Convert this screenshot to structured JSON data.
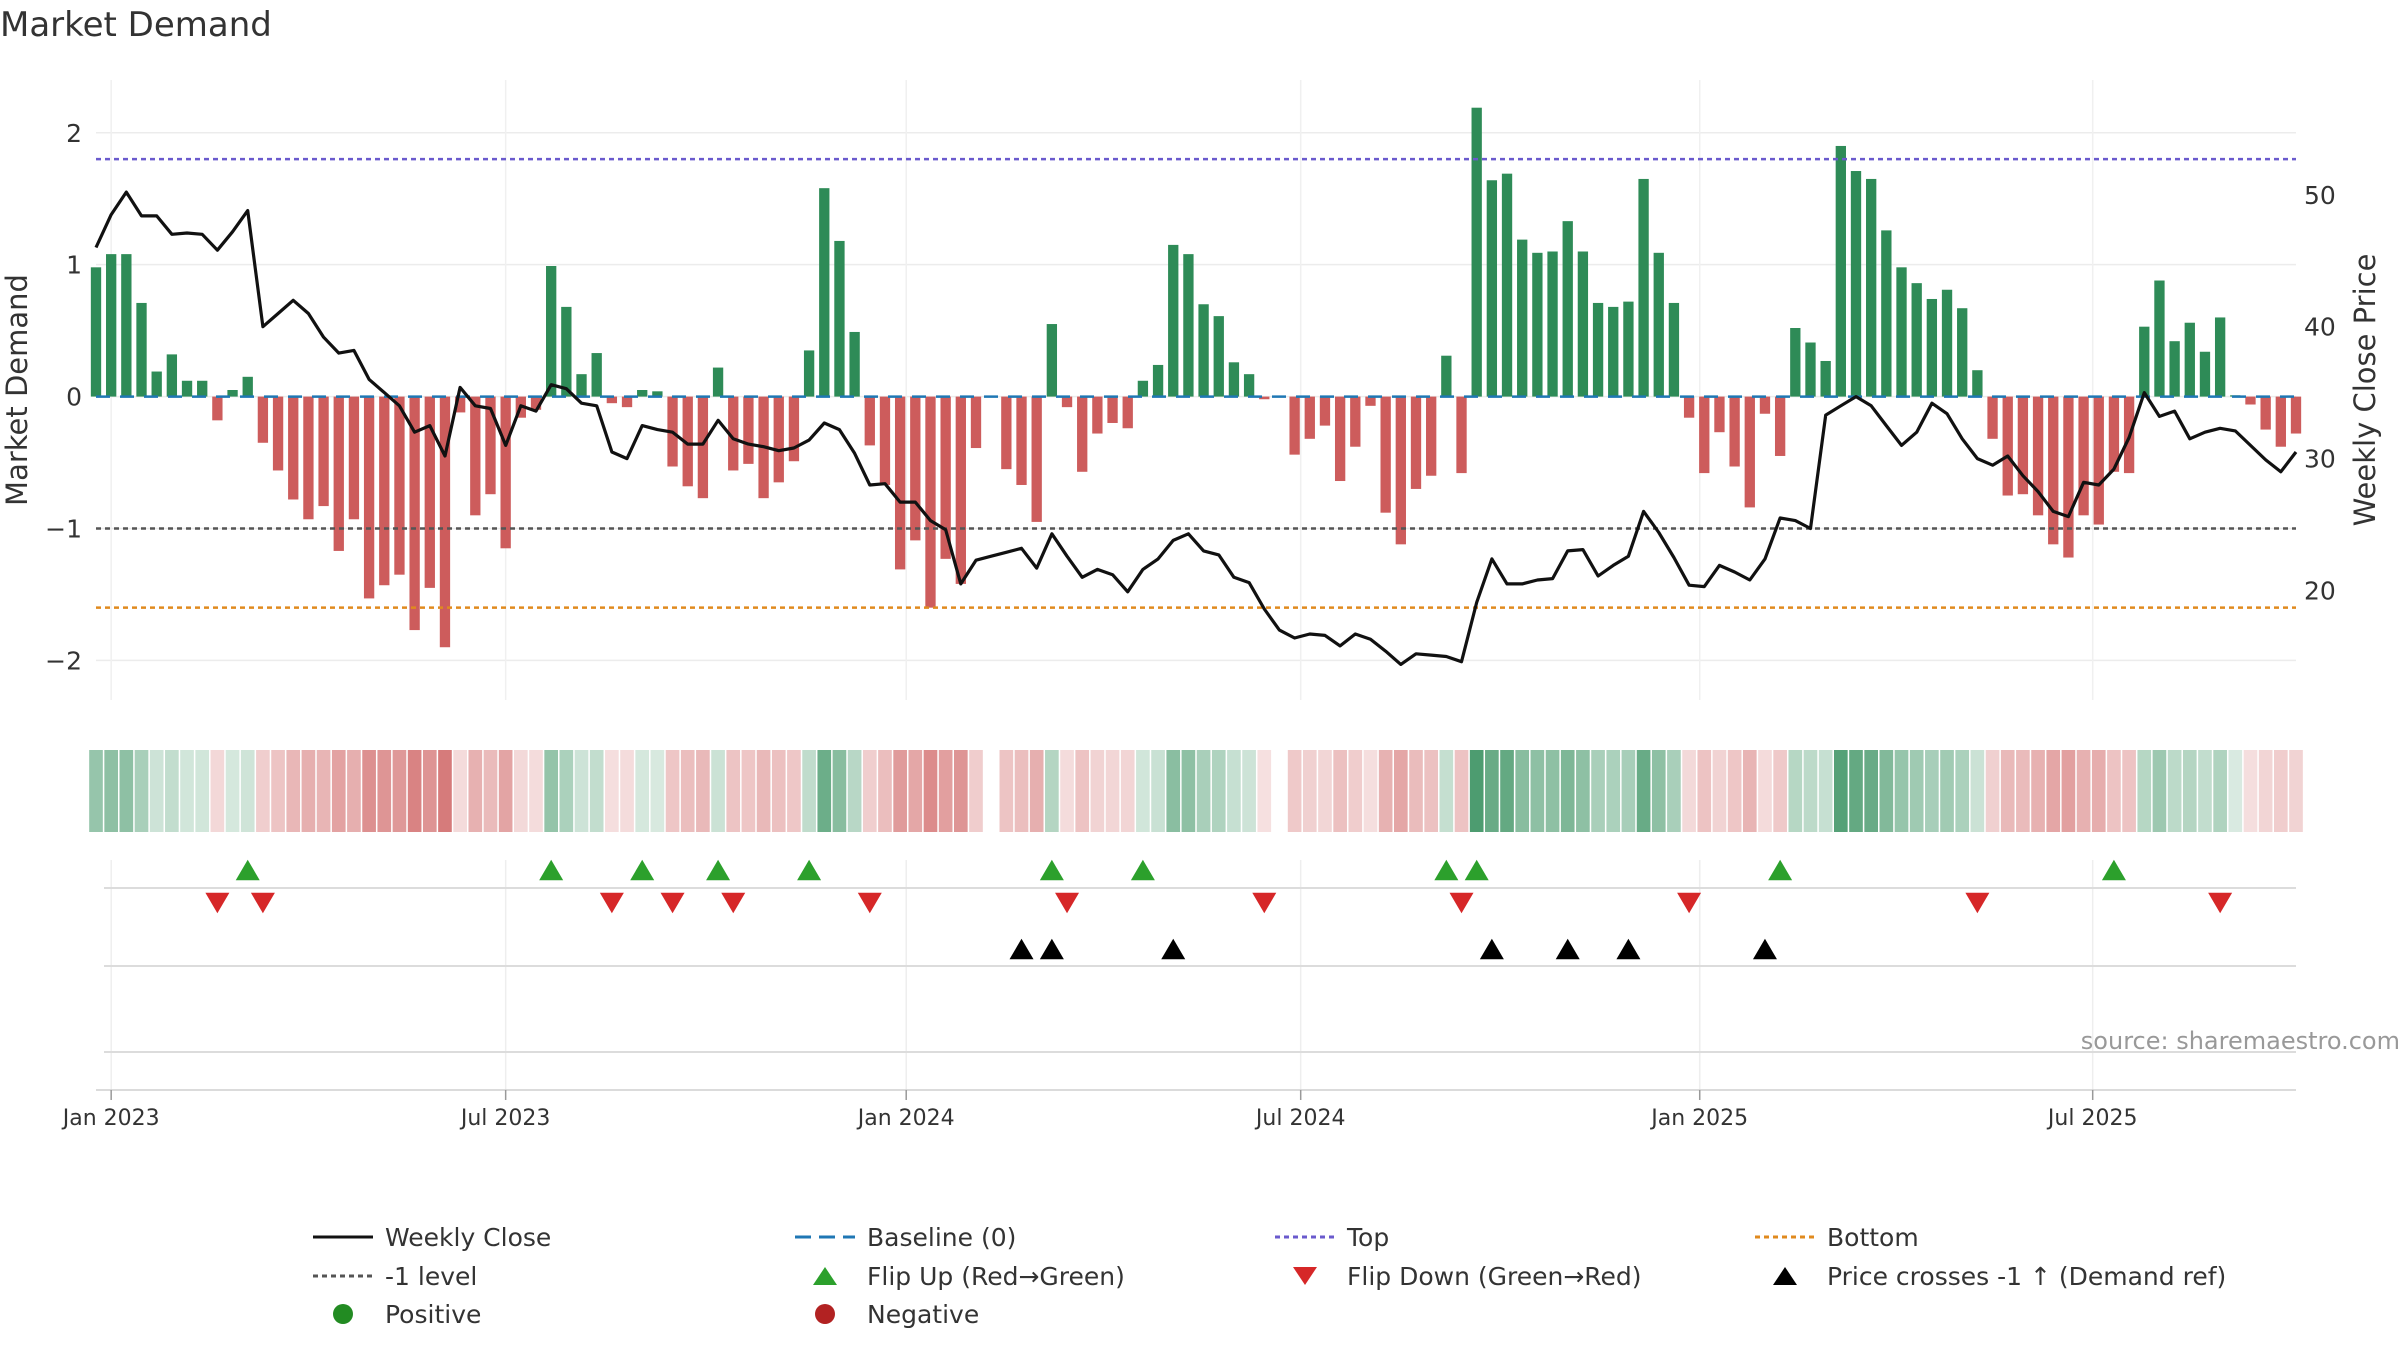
{
  "chart_data": {
    "type": "bar",
    "title": "Market Demand",
    "ylabel_left": "Market Demand",
    "ylabel_right": "Weekly Close Price",
    "source": "source: sharemaestro.com",
    "ylim_left": [
      -2.3,
      2.4
    ],
    "ylim_right": [
      11.7,
      58.7
    ],
    "yticks_left": [
      2,
      1,
      0,
      -1,
      -2
    ],
    "yticks_right": [
      50,
      40,
      30,
      20
    ],
    "ytick_labels_left": [
      "2",
      "1",
      "0",
      "−1",
      "−2"
    ],
    "ytick_labels_right": [
      "50",
      "40",
      "30",
      "20"
    ],
    "xticks": [
      {
        "label": "Jan 2023",
        "week": 1
      },
      {
        "label": "Jul 2023",
        "week": 27
      },
      {
        "label": "Jan 2024",
        "week": 53.4
      },
      {
        "label": "Jul 2024",
        "week": 79.4
      },
      {
        "label": "Jan 2025",
        "week": 105.7
      },
      {
        "label": "Jul 2025",
        "week": 131.6
      }
    ],
    "levels": {
      "top": 1.8,
      "bottom": -1.6,
      "minus_one": -1.0,
      "baseline": 0
    },
    "colors": {
      "positive": "#2e8b57",
      "negative": "#cd5c5c",
      "close": "#111111",
      "baseline": "#1f77b4",
      "top": "#6a5acd",
      "bottom": "#e08a1e",
      "minus_one": "#555555",
      "flip_up": "#2ca02c",
      "flip_down": "#d62728",
      "cross": "#000000",
      "positive_dot": "#228b22",
      "negative_dot": "#b22222"
    },
    "x_range_weeks": [
      0,
      145
    ],
    "demand": [
      0.98,
      1.08,
      1.08,
      0.71,
      0.19,
      0.32,
      0.12,
      0.12,
      -0.18,
      0.05,
      0.15,
      -0.35,
      -0.56,
      -0.78,
      -0.93,
      -0.83,
      -1.17,
      -0.93,
      -1.53,
      -1.43,
      -1.35,
      -1.77,
      -1.45,
      -1.9,
      -0.12,
      -0.9,
      -0.74,
      -1.15,
      -0.16,
      -0.1,
      0.99,
      0.68,
      0.17,
      0.33,
      -0.05,
      -0.08,
      0.05,
      0.04,
      -0.53,
      -0.68,
      -0.77,
      0.22,
      -0.56,
      -0.51,
      -0.77,
      -0.65,
      -0.49,
      0.35,
      1.58,
      1.18,
      0.49,
      -0.37,
      -0.67,
      -1.31,
      -1.09,
      -1.6,
      -1.23,
      -1.42,
      -0.39,
      null,
      -0.55,
      -0.67,
      -0.95,
      0.55,
      -0.08,
      -0.57,
      -0.28,
      -0.2,
      -0.24,
      0.12,
      0.24,
      1.15,
      1.08,
      0.7,
      0.61,
      0.26,
      0.17,
      -0.02,
      null,
      -0.44,
      -0.32,
      -0.22,
      -0.64,
      -0.38,
      -0.07,
      -0.88,
      -1.12,
      -0.7,
      -0.6,
      0.31,
      -0.58,
      2.19,
      1.64,
      1.69,
      1.19,
      1.09,
      1.1,
      1.33,
      1.1,
      0.71,
      0.68,
      0.72,
      1.65,
      1.09,
      0.71,
      -0.16,
      -0.58,
      -0.27,
      -0.53,
      -0.84,
      -0.13,
      -0.45,
      0.52,
      0.41,
      0.27,
      1.9,
      1.71,
      1.65,
      1.26,
      0.98,
      0.86,
      0.74,
      0.81,
      0.67,
      0.2,
      -0.32,
      -0.75,
      -0.74,
      -0.9,
      -1.12,
      -1.22,
      -0.9,
      -0.97,
      -0.57,
      -0.58,
      0.53,
      0.88,
      0.42,
      0.56,
      0.34,
      0.6,
      0.01,
      -0.06,
      -0.25,
      -0.38,
      -0.28
    ],
    "close": [
      46.0,
      48.5,
      50.2,
      48.4,
      48.4,
      47.0,
      47.1,
      47.0,
      45.8,
      47.2,
      48.8,
      40.0,
      41.0,
      42.0,
      41.0,
      39.2,
      38.0,
      38.2,
      36.0,
      35.0,
      34.0,
      32.0,
      32.5,
      30.2,
      35.4,
      34.0,
      33.8,
      31.0,
      34.0,
      33.6,
      35.6,
      35.3,
      34.2,
      34.0,
      30.5,
      30.0,
      32.5,
      32.2,
      32.0,
      31.1,
      31.1,
      32.9,
      31.5,
      31.1,
      30.9,
      30.6,
      30.8,
      31.4,
      32.7,
      32.2,
      30.4,
      28.0,
      28.1,
      26.7,
      26.7,
      25.3,
      24.6,
      20.5,
      22.3,
      22.6,
      22.9,
      23.2,
      21.7,
      24.3,
      22.6,
      21.0,
      21.6,
      21.2,
      19.9,
      21.6,
      22.4,
      23.8,
      24.3,
      23.0,
      22.7,
      21.0,
      20.6,
      18.6,
      17.0,
      16.4,
      16.7,
      16.6,
      15.8,
      16.7,
      16.3,
      15.4,
      14.4,
      15.2,
      15.1,
      15.0,
      14.6,
      19.1,
      22.4,
      20.5,
      20.5,
      20.8,
      20.9,
      23.0,
      23.1,
      21.1,
      21.9,
      22.6,
      26.0,
      24.4,
      22.5,
      20.4,
      20.3,
      21.9,
      21.4,
      20.8,
      22.4,
      25.5,
      25.3,
      24.7,
      33.3,
      34.0,
      34.7,
      34.0,
      32.5,
      31.0,
      32.0,
      34.2,
      33.4,
      31.5,
      30.0,
      29.5,
      30.2,
      28.7,
      27.5,
      26.0,
      25.6,
      28.2,
      28.0,
      29.2,
      31.6,
      35.0,
      33.2,
      33.6,
      31.5,
      32.0,
      32.3,
      32.1,
      31.0,
      29.9,
      29.0,
      30.5
    ],
    "flip_up_weeks": [
      10,
      30,
      36,
      41,
      47,
      63,
      69,
      89,
      91,
      111,
      133
    ],
    "flip_down_weeks": [
      8,
      11,
      34,
      38,
      42,
      51,
      64,
      77,
      90,
      105,
      124,
      140
    ],
    "cross_weeks": [
      61,
      63,
      71,
      92,
      97,
      101,
      110
    ],
    "legend": [
      {
        "label": "Weekly Close",
        "kind": "line",
        "color": "#111111",
        "dash": ""
      },
      {
        "label": "Baseline (0)",
        "kind": "line",
        "color": "#1f77b4",
        "dash": "16,8"
      },
      {
        "label": "Top",
        "kind": "line",
        "color": "#6a5acd",
        "dash": "5,4"
      },
      {
        "label": "Bottom",
        "kind": "line",
        "color": "#e08a1e",
        "dash": "5,4"
      },
      {
        "label": "-1 level",
        "kind": "line",
        "color": "#555555",
        "dash": "5,4"
      },
      {
        "label": "Flip Up (Red→Green)",
        "kind": "tri-up",
        "color": "#2ca02c"
      },
      {
        "label": "Flip Down (Green→Red)",
        "kind": "tri-down",
        "color": "#d62728"
      },
      {
        "label": "Price crosses -1 ↑ (Demand ref)",
        "kind": "tri-up",
        "color": "#000000"
      },
      {
        "label": "Positive",
        "kind": "dot",
        "color": "#228b22"
      },
      {
        "label": "Negative",
        "kind": "dot",
        "color": "#b22222"
      }
    ]
  }
}
